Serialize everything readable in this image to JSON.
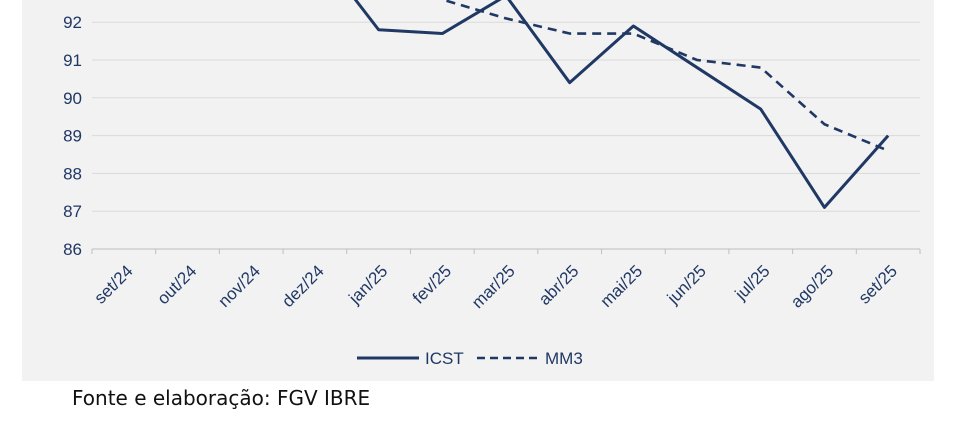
{
  "chart_data": {
    "type": "line",
    "categories": [
      "set/24",
      "out/24",
      "nov/24",
      "dez/24",
      "jan/25",
      "fev/25",
      "mar/25",
      "abr/25",
      "mai/25",
      "jun/25",
      "jul/25",
      "ago/25",
      "set/25"
    ],
    "series": [
      {
        "name": "ICST",
        "values": [
          null,
          null,
          null,
          null,
          91.8,
          91.7,
          92.7,
          90.4,
          91.9,
          90.8,
          89.7,
          87.1,
          89.0
        ]
      },
      {
        "name": "MM3",
        "values": [
          null,
          null,
          null,
          null,
          null,
          92.6,
          92.1,
          91.7,
          91.7,
          91.0,
          90.8,
          89.3,
          88.6
        ]
      }
    ],
    "yticks": [
      86,
      87,
      88,
      89,
      90,
      91,
      92
    ],
    "ylim": [
      86,
      93
    ],
    "grid": true,
    "legend": "bottom",
    "colors": {
      "line": "#203864",
      "tick_label": "#203864",
      "grid": "#d9d9d9",
      "background": "#f2f2f2"
    }
  },
  "source_note": "Fonte e elaboração: FGV IBRE"
}
